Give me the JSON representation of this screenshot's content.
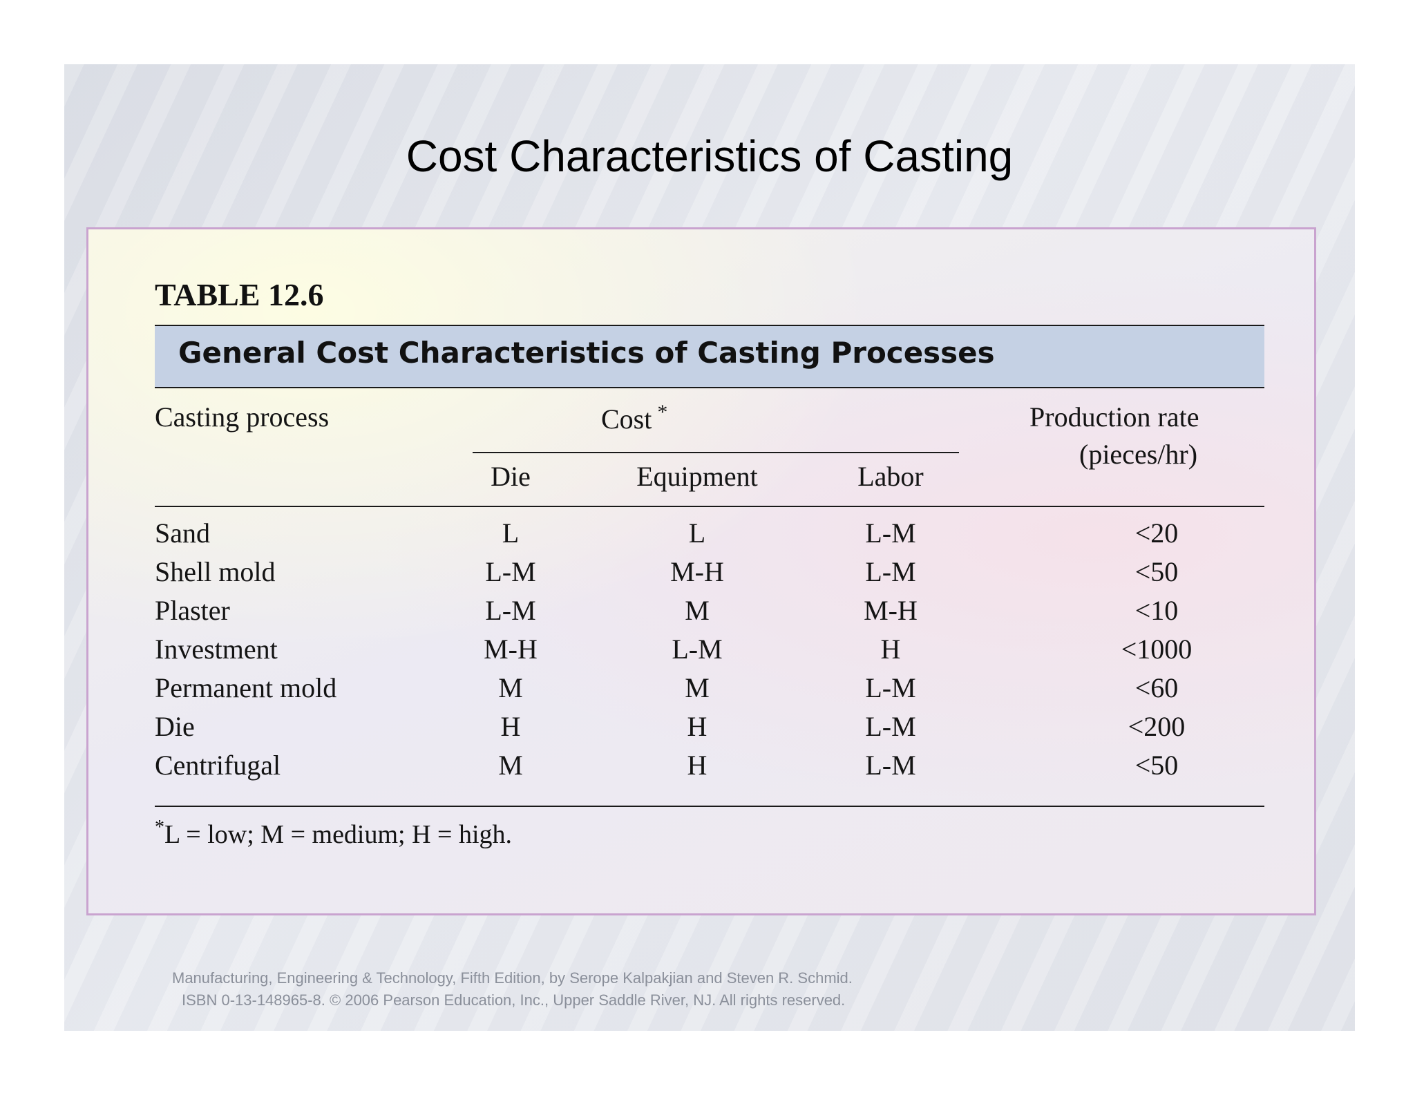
{
  "slide": {
    "title": "Cost Characteristics of Casting"
  },
  "table": {
    "label": "TABLE 12.6",
    "caption": "General Cost Characteristics of Casting Processes",
    "headers": {
      "process": "Casting process",
      "cost_group": "Cost",
      "cost_group_mark": "*",
      "die": "Die",
      "equipment": "Equipment",
      "labor": "Labor",
      "rate_line1": "Production rate",
      "rate_line2": "(pieces/hr)"
    },
    "rows": [
      {
        "process": "Sand",
        "die": "L",
        "equipment": "L",
        "labor": "L-M",
        "rate": "<20"
      },
      {
        "process": "Shell mold",
        "die": "L-M",
        "equipment": "M-H",
        "labor": "L-M",
        "rate": "<50"
      },
      {
        "process": "Plaster",
        "die": "L-M",
        "equipment": "M",
        "labor": "M-H",
        "rate": "<10"
      },
      {
        "process": "Investment",
        "die": "M-H",
        "equipment": "L-M",
        "labor": "H",
        "rate": "<1000"
      },
      {
        "process": "Permanent mold",
        "die": "M",
        "equipment": "M",
        "labor": "L-M",
        "rate": "<60"
      },
      {
        "process": "Die",
        "die": "H",
        "equipment": "H",
        "labor": "L-M",
        "rate": "<200"
      },
      {
        "process": "Centrifugal",
        "die": "M",
        "equipment": "H",
        "labor": "L-M",
        "rate": "<50"
      }
    ],
    "footnote_mark": "*",
    "footnote": "L = low; M = medium; H = high."
  },
  "credit": {
    "line1": "Manufacturing, Engineering & Technology, Fifth Edition, by Serope Kalpakjian and Steven R. Schmid.",
    "line2": "ISBN 0-13-148965-8. © 2006 Pearson Education, Inc., Upper Saddle River, NJ.  All rights reserved."
  }
}
